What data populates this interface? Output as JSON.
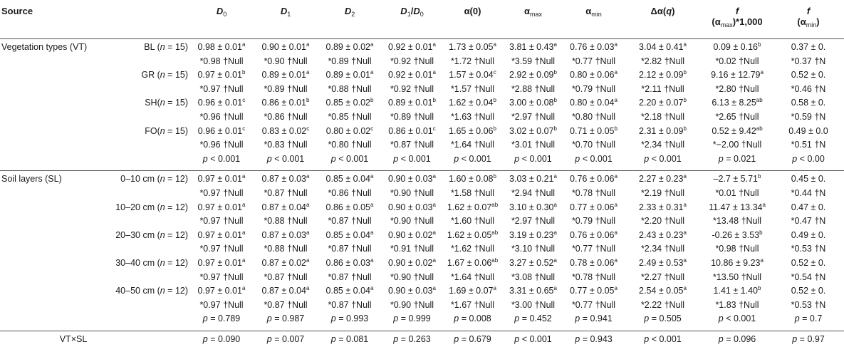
{
  "headers": {
    "source": "Source",
    "d0": {
      "sym": "D",
      "sub": "0"
    },
    "d1": {
      "sym": "D",
      "sub": "1"
    },
    "d2": {
      "sym": "D",
      "sub": "2"
    },
    "d1d0": {
      "a": "D",
      "asub": "1",
      "slash": "/",
      "b": "D",
      "bsub": "0"
    },
    "alpha0": "α(0)",
    "alphamax": {
      "sym": "α",
      "sub": "max"
    },
    "alphamin": {
      "sym": "α",
      "sub": "min"
    },
    "dalpha": {
      "pre": "Δα(",
      "q": "q",
      "post": ")"
    },
    "fmax": {
      "f": "f",
      "line2a": "(α",
      "line2sub": "max",
      "line2b": ")*1,000"
    },
    "fmin": {
      "f": "f",
      "line2a": "(α",
      "line2sub": "min",
      "line2b": ")"
    }
  },
  "vt_section": {
    "label": "Vegetation types (VT)",
    "groups": [
      {
        "name": "BL (",
        "n": "n",
        "eq": " = 15)",
        "mean": [
          {
            "v": "0.98 ± 0.01",
            "s": "a"
          },
          {
            "v": "0.90 ± 0.01",
            "s": "a"
          },
          {
            "v": "0.89 ± 0.02",
            "s": "a"
          },
          {
            "v": "0.92 ± 0.01",
            "s": "a"
          },
          {
            "v": "1.73 ± 0.05",
            "s": "a"
          },
          {
            "v": "3.81 ± 0.43",
            "s": "a"
          },
          {
            "v": "0.76 ± 0.03",
            "s": "a"
          },
          {
            "v": "3.04 ± 0.41",
            "s": "a"
          },
          {
            "v": "0.09 ± 0.16",
            "s": "b"
          },
          {
            "v": "0.37 ± 0.",
            "s": ""
          }
        ],
        "null": [
          "*0.98 †Null",
          "*0.90 †Null",
          "*0.89 †Null",
          "*0.92 †Null",
          "*1.72 †Null",
          "*3.59 †Null",
          "*0.77 †Null",
          "*2.82 †Null",
          "*0.02 †Null",
          "*0.37 †N"
        ]
      },
      {
        "name": "GR (",
        "n": "n",
        "eq": " = 15)",
        "mean": [
          {
            "v": "0.97 ± 0.01",
            "s": "b"
          },
          {
            "v": "0.89 ± 0.01",
            "s": "a"
          },
          {
            "v": "0.89 ± 0.01",
            "s": "a"
          },
          {
            "v": "0.92 ± 0.01",
            "s": "a"
          },
          {
            "v": "1.57 ± 0.04",
            "s": "c"
          },
          {
            "v": "2.92 ± 0.09",
            "s": "b"
          },
          {
            "v": "0.80 ± 0.06",
            "s": "a"
          },
          {
            "v": "2.12 ± 0.09",
            "s": "b"
          },
          {
            "v": "9.16 ± 12.79",
            "s": "a"
          },
          {
            "v": "0.52 ± 0.",
            "s": ""
          }
        ],
        "null": [
          "*0.97 †Null",
          "*0.89 †Null",
          "*0.88 †Null",
          "*0.92 †Null",
          "*1.57 †Null",
          "*2.88 †Null",
          "*0.79 †Null",
          "*2.11 †Null",
          "*2.80 †Null",
          "*0.46 †N"
        ]
      },
      {
        "name": "SH(",
        "n": "n",
        "eq": " = 15)",
        "mean": [
          {
            "v": "0.96 ± 0.01",
            "s": "c"
          },
          {
            "v": "0.86 ± 0.01",
            "s": "b"
          },
          {
            "v": "0.85 ± 0.02",
            "s": "b"
          },
          {
            "v": "0.89 ± 0.01",
            "s": "b"
          },
          {
            "v": "1.62 ± 0.04",
            "s": "b"
          },
          {
            "v": "3.00 ± 0.08",
            "s": "b"
          },
          {
            "v": "0.80 ± 0.04",
            "s": "a"
          },
          {
            "v": "2.20 ± 0.07",
            "s": "b"
          },
          {
            "v": "6.13 ± 8.25",
            "s": "ab"
          },
          {
            "v": "0.58 ± 0.",
            "s": ""
          }
        ],
        "null": [
          "*0.96 †Null",
          "*0.86 †Null",
          "*0.85 †Null",
          "*0.89 †Null",
          "*1.63 †Null",
          "*2.97 †Null",
          "*0.80 †Null",
          "*2.18 †Null",
          "*2.65 †Null",
          "*0.59 †N"
        ]
      },
      {
        "name": "FO(",
        "n": "n",
        "eq": " = 15)",
        "mean": [
          {
            "v": "0.96 ± 0.01",
            "s": "c"
          },
          {
            "v": "0.83 ± 0.02",
            "s": "c"
          },
          {
            "v": "0.80 ± 0.02",
            "s": "c"
          },
          {
            "v": "0.86 ± 0.01",
            "s": "c"
          },
          {
            "v": "1.65 ± 0.06",
            "s": "b"
          },
          {
            "v": "3.02 ± 0.07",
            "s": "b"
          },
          {
            "v": "0.71 ± 0.05",
            "s": "b"
          },
          {
            "v": "2.31 ± 0.09",
            "s": "b"
          },
          {
            "v": "0.52 ± 9.42",
            "s": "ab"
          },
          {
            "v": "0.49 ± 0.0",
            "s": ""
          }
        ],
        "null": [
          "*0.96 †Null",
          "*0.83 †Null",
          "*0.80 †Null",
          "*0.87 †Null",
          "*1.64 †Null",
          "*3.01 †Null",
          "*0.70 †Null",
          "*2.34 †Null",
          "*−2.00 †Null",
          "*0.51 †N"
        ]
      }
    ],
    "p": [
      "< 0.001",
      "< 0.001",
      "< 0.001",
      "< 0.001",
      "< 0.001",
      "< 0.001",
      "< 0.001",
      "< 0.001",
      "= 0.021",
      "< 0.00"
    ]
  },
  "sl_section": {
    "label": "Soil layers (SL)",
    "groups": [
      {
        "name": "0–10 cm (",
        "n": "n",
        "eq": " = 12)",
        "mean": [
          {
            "v": "0.97 ± 0.01",
            "s": "a"
          },
          {
            "v": "0.87 ± 0.03",
            "s": "a"
          },
          {
            "v": "0.85 ± 0.04",
            "s": "a"
          },
          {
            "v": "0.90 ± 0.03",
            "s": "a"
          },
          {
            "v": "1.60 ± 0.08",
            "s": "b"
          },
          {
            "v": "3.03 ± 0.21",
            "s": "a"
          },
          {
            "v": "0.76 ± 0.06",
            "s": "a"
          },
          {
            "v": "2.27 ± 0.23",
            "s": "a"
          },
          {
            "v": "–2.7 ± 5.71",
            "s": "b"
          },
          {
            "v": "0.45 ± 0.",
            "s": ""
          }
        ],
        "null": [
          "*0.97 †Null",
          "*0.87 †Null",
          "*0.86 †Null",
          "*0.90 †Null",
          "*1.58 †Null",
          "*2.94 †Null",
          "*0.78 †Null",
          "*2.19 †Null",
          "*0.01 †Null",
          "*0.44 †N"
        ]
      },
      {
        "name": "10–20 cm (",
        "n": "n",
        "eq": " = 12)",
        "mean": [
          {
            "v": "0.97 ± 0.01",
            "s": "a"
          },
          {
            "v": "0.87 ± 0.04",
            "s": "a"
          },
          {
            "v": "0.86 ± 0.05",
            "s": "a"
          },
          {
            "v": "0.90 ± 0.03",
            "s": "a"
          },
          {
            "v": "1.62 ± 0.07",
            "s": "ab"
          },
          {
            "v": "3.10 ± 0.30",
            "s": "a"
          },
          {
            "v": "0.77 ± 0.06",
            "s": "a"
          },
          {
            "v": "2.33 ± 0.31",
            "s": "a"
          },
          {
            "v": "11.47 ± 13.34",
            "s": "a"
          },
          {
            "v": "0.47 ± 0.",
            "s": ""
          }
        ],
        "null": [
          "*0.97 †Null",
          "*0.88 †Null",
          "*0.87 †Null",
          "*0.90 †Null",
          "*1.60 †Null",
          "*2.97 †Null",
          "*0.79 †Null",
          "*2.20 †Null",
          "*13.48 †Null",
          "*0.47 †N"
        ]
      },
      {
        "name": "20–30 cm (",
        "n": "n",
        "eq": " = 12)",
        "mean": [
          {
            "v": "0.97 ± 0.01",
            "s": "a"
          },
          {
            "v": "0.87 ± 0.03",
            "s": "a"
          },
          {
            "v": "0.85 ± 0.04",
            "s": "a"
          },
          {
            "v": "0.90 ± 0.02",
            "s": "a"
          },
          {
            "v": "1.62 ± 0.05",
            "s": "ab"
          },
          {
            "v": "3.19 ± 0.23",
            "s": "a"
          },
          {
            "v": "0.76 ± 0.06",
            "s": "a"
          },
          {
            "v": "2.43 ± 0.23",
            "s": "a"
          },
          {
            "v": "-0.26 ± 3.53",
            "s": "b"
          },
          {
            "v": "0.49 ± 0.",
            "s": ""
          }
        ],
        "null": [
          "*0.97 †Null",
          "*0.88 †Null",
          "*0.87 †Null",
          "*0.91 †Null",
          "*1.62 †Null",
          "*3.10 †Null",
          "*0.77 †Null",
          "*2.34 †Null",
          "*0.98 †Null",
          "*0.53 †N"
        ]
      },
      {
        "name": "30–40 cm (",
        "n": "n",
        "eq": " = 12)",
        "mean": [
          {
            "v": "0.97 ± 0.01",
            "s": "a"
          },
          {
            "v": "0.87 ± 0.02",
            "s": "a"
          },
          {
            "v": "0.86 ± 0.03",
            "s": "a"
          },
          {
            "v": "0.90 ± 0.02",
            "s": "a"
          },
          {
            "v": "1.67 ± 0.06",
            "s": "ab"
          },
          {
            "v": "3.27 ± 0.52",
            "s": "a"
          },
          {
            "v": "0.78 ± 0.06",
            "s": "a"
          },
          {
            "v": "2.49 ± 0.53",
            "s": "a"
          },
          {
            "v": "10.86 ± 9.23",
            "s": "a"
          },
          {
            "v": "0.52 ± 0.",
            "s": ""
          }
        ],
        "null": [
          "*0.97 †Null",
          "*0.87 †Null",
          "*0.87 †Null",
          "*0.90 †Null",
          "*1.64 †Null",
          "*3.08 †Null",
          "*0.78 †Null",
          "*2.27 †Null",
          "*13.50 †Null",
          "*0.54 †N"
        ]
      },
      {
        "name": "40–50 cm (",
        "n": "n",
        "eq": " = 12)",
        "mean": [
          {
            "v": "0.97 ± 0.01",
            "s": "a"
          },
          {
            "v": "0.87 ± 0.04",
            "s": "a"
          },
          {
            "v": "0.85 ± 0.04",
            "s": "a"
          },
          {
            "v": "0.90 ± 0.03",
            "s": "a"
          },
          {
            "v": "1.69 ± 0.07",
            "s": "a"
          },
          {
            "v": "3.31 ± 0.65",
            "s": "a"
          },
          {
            "v": "0.77 ± 0.05",
            "s": "a"
          },
          {
            "v": "2.54 ± 0.05",
            "s": "a"
          },
          {
            "v": "1.41 ± 1.40",
            "s": "b"
          },
          {
            "v": "0.52 ± 0.",
            "s": ""
          }
        ],
        "null": [
          "*0.97 †Null",
          "*0.87 †Null",
          "*0.87 †Null",
          "*0.90 †Null",
          "*1.67 †Null",
          "*3.00 †Null",
          "*0.77 †Null",
          "*2.22 †Null",
          "*1.83 †Null",
          "*0.53 †N"
        ]
      }
    ],
    "p": [
      "= 0.789",
      "= 0.987",
      "= 0.993",
      "= 0.999",
      "= 0.008",
      "= 0.452",
      "= 0.941",
      "= 0.505",
      "< 0.001",
      "= 0.7"
    ]
  },
  "interaction": {
    "label": "VT×SL",
    "p": [
      "= 0.090",
      "= 0.007",
      "= 0.081",
      "= 0.263",
      "= 0.679",
      "< 0.001",
      "= 0.943",
      "< 0.001",
      "= 0.096",
      "= 0.97"
    ]
  },
  "p_symbol": "p"
}
